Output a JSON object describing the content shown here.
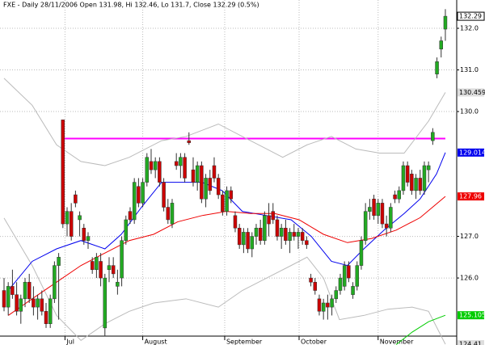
{
  "chart_data": {
    "type": "candlestick",
    "title": "FXE - Daily 28/11/2006 Open 131.98, Hi 132.46, Lo 131.7, Close 132.29 (0.5%)",
    "up_color": "#22aa22",
    "down_color": "#cc0000",
    "open": [
      125.7,
      125.3,
      125.8,
      125.6,
      125.2,
      125.5,
      125.9,
      125.5,
      125.3,
      125.5,
      125.2,
      124.9,
      125.5,
      126.3,
      129.8,
      127.3,
      127.6,
      128.0,
      127.4,
      127.2,
      126.9,
      126.4,
      126.2,
      126.4,
      124.8,
      126.2,
      126.3,
      125.8,
      126.0,
      126.9,
      127.6,
      127.4,
      128.2,
      127.8,
      128.3,
      128.8,
      128.6,
      128.8,
      128.3,
      127.7,
      127.3,
      128.8,
      128.7,
      128.9,
      129.3,
      128.6,
      128.3,
      128.7,
      127.9,
      128.4,
      128.7,
      128.4,
      128.0,
      127.6,
      128.1,
      127.5,
      127.2,
      126.8,
      127.1,
      126.7,
      127.0,
      127.2,
      126.9,
      127.5,
      127.6,
      127.4,
      127.0,
      127.2,
      126.9,
      127.1,
      127.0,
      127.1,
      126.9,
      126.0,
      125.9,
      125.5,
      125.2,
      125.4,
      125.3,
      125.5,
      125.7,
      125.8,
      126.3,
      125.6,
      125.8,
      126.3,
      126.9,
      127.6,
      127.9,
      127.5,
      127.8,
      127.3,
      127.2,
      128.0,
      127.9,
      128.1,
      128.7,
      128.5,
      128.1,
      128.4,
      128.1,
      128.6,
      129.3,
      130.9,
      131.5,
      131.98
    ],
    "high": [
      126.0,
      125.9,
      126.2,
      125.9,
      125.6,
      126.0,
      126.1,
      125.8,
      125.6,
      125.7,
      125.4,
      125.6,
      126.4,
      126.6,
      129.8,
      127.7,
      127.8,
      128.1,
      127.6,
      127.3,
      127.1,
      126.5,
      126.6,
      126.6,
      126.1,
      126.5,
      126.5,
      126.2,
      127.0,
      127.5,
      127.7,
      128.4,
      128.4,
      128.4,
      129.0,
      129.1,
      128.9,
      128.9,
      128.4,
      127.9,
      127.9,
      129.0,
      129.0,
      129.0,
      129.5,
      128.9,
      128.8,
      128.8,
      128.5,
      128.6,
      128.9,
      128.5,
      128.1,
      128.2,
      128.2,
      127.6,
      127.3,
      127.2,
      127.2,
      127.1,
      127.3,
      127.4,
      127.6,
      127.8,
      127.8,
      127.5,
      127.3,
      127.4,
      127.2,
      127.3,
      127.2,
      127.2,
      127.0,
      126.1,
      126.0,
      125.6,
      125.5,
      125.6,
      125.6,
      125.8,
      126.1,
      126.4,
      126.4,
      125.9,
      126.4,
      127.0,
      127.8,
      127.9,
      128.0,
      127.9,
      127.9,
      127.5,
      127.8,
      128.1,
      128.2,
      128.8,
      128.8,
      128.6,
      128.5,
      128.6,
      128.8,
      128.8,
      129.6,
      131.3,
      131.8,
      132.46
    ],
    "low": [
      125.2,
      125.1,
      125.5,
      125.1,
      124.9,
      125.3,
      125.4,
      125.1,
      125.0,
      125.1,
      124.8,
      124.8,
      125.4,
      125.0,
      127.2,
      127.0,
      126.9,
      127.7,
      127.0,
      126.8,
      126.7,
      126.1,
      126.0,
      125.8,
      124.6,
      125.9,
      126.0,
      125.6,
      125.8,
      126.8,
      127.3,
      127.3,
      127.7,
      127.7,
      128.2,
      128.5,
      128.4,
      128.2,
      127.6,
      127.3,
      127.2,
      128.6,
      128.4,
      128.3,
      129.2,
      128.2,
      128.1,
      127.8,
      127.7,
      128.0,
      128.3,
      127.9,
      127.5,
      127.5,
      127.8,
      127.1,
      126.7,
      126.6,
      126.6,
      126.5,
      126.8,
      126.8,
      126.8,
      127.0,
      127.3,
      126.9,
      126.7,
      126.8,
      126.6,
      126.9,
      126.7,
      126.8,
      126.7,
      125.8,
      125.6,
      125.1,
      125.0,
      125.0,
      125.1,
      125.4,
      125.6,
      125.7,
      125.9,
      125.5,
      125.7,
      126.2,
      126.8,
      127.4,
      127.4,
      127.3,
      127.2,
      127.0,
      127.1,
      127.8,
      127.8,
      128.0,
      128.2,
      128.0,
      127.9,
      128.0,
      128.0,
      128.3,
      129.2,
      130.8,
      131.3,
      131.7
    ],
    "close": [
      125.3,
      125.8,
      125.6,
      125.2,
      125.5,
      125.9,
      125.5,
      125.3,
      125.5,
      125.2,
      124.9,
      125.5,
      126.3,
      126.5,
      127.3,
      127.6,
      127.0,
      127.8,
      127.5,
      126.9,
      127.0,
      126.2,
      126.5,
      126.0,
      126.0,
      126.3,
      126.1,
      125.9,
      126.9,
      127.4,
      127.4,
      128.3,
      127.8,
      128.3,
      128.9,
      128.6,
      128.8,
      128.3,
      127.7,
      127.4,
      127.8,
      128.7,
      128.9,
      128.4,
      129.25,
      128.3,
      128.7,
      127.9,
      128.4,
      128.1,
      128.4,
      128.0,
      127.6,
      128.1,
      127.9,
      127.2,
      126.8,
      127.1,
      126.7,
      127.0,
      127.2,
      126.9,
      127.5,
      127.3,
      127.4,
      127.0,
      127.2,
      126.9,
      127.1,
      127.0,
      127.1,
      126.9,
      126.8,
      125.9,
      125.7,
      125.2,
      125.4,
      125.3,
      125.5,
      125.7,
      126.0,
      126.3,
      126.0,
      125.8,
      126.3,
      126.9,
      127.6,
      127.7,
      127.5,
      127.8,
      127.3,
      127.2,
      127.7,
      127.9,
      128.1,
      128.7,
      128.3,
      128.1,
      128.4,
      128.1,
      128.7,
      128.7,
      129.5,
      131.2,
      131.7,
      132.29
    ],
    "lines": [
      {
        "color": "#ff00ff",
        "x": [
          14,
          105
        ],
        "values": [
          129.35,
          129.35
        ]
      },
      {
        "color": "#bbbbbb",
        "tag_fill": "#dddddd",
        "tag_text": "#000000",
        "x": [
          0,
          6.7,
          12.5,
          18.3,
          24,
          29.8,
          37.5,
          43.3,
          51,
          56.7,
          62.5,
          66.3,
          72.1,
          77.9,
          83.7,
          89.4,
          95.2,
          101,
          105
        ],
        "values": [
          130.8,
          130.15,
          129.2,
          128.8,
          128.7,
          128.9,
          129.3,
          129.4,
          129.7,
          129.4,
          129.1,
          128.9,
          129.2,
          129.4,
          129.1,
          129.0,
          129.0,
          129.77,
          130.459
        ]
      },
      {
        "color": "#bbbbbb",
        "tag_fill": "#dddddd",
        "tag_text": "#000000",
        "x": [
          0,
          6.7,
          12.5,
          18.3,
          24,
          29.8,
          35.6,
          43.3,
          51,
          56.7,
          62.5,
          68.3,
          72.1,
          76,
          79.8,
          85.6,
          91.3,
          97.1,
          101,
          105
        ],
        "values": [
          127.44,
          126.3,
          125.1,
          124.5,
          124.9,
          125.2,
          125.4,
          125.5,
          125.3,
          125.7,
          126.0,
          126.3,
          126.5,
          126.0,
          125.0,
          125.1,
          125.25,
          125.3,
          125.2,
          124.41
        ]
      },
      {
        "color": "#0000ee",
        "tag_fill": "#0000ee",
        "tag_text": "#ffffff",
        "x": [
          1,
          6.7,
          12.5,
          18.3,
          24,
          27.9,
          32.7,
          37.5,
          42.3,
          47.1,
          51.9,
          56.7,
          62.5,
          68.3,
          73.1,
          77.9,
          81.7,
          85.6,
          90.4,
          95.2,
          99,
          102.9,
          105
        ],
        "values": [
          125.7,
          126.4,
          126.7,
          126.9,
          126.7,
          127.05,
          127.7,
          128.3,
          128.3,
          128.3,
          128.1,
          127.6,
          127.5,
          127.4,
          127.0,
          126.4,
          126.3,
          126.7,
          127.15,
          127.55,
          127.9,
          128.5,
          129.014
        ]
      },
      {
        "color": "#ee0000",
        "tag_fill": "#ee0000",
        "tag_text": "#ffffff",
        "x": [
          1,
          6.7,
          12.5,
          18.3,
          24,
          29.8,
          35.6,
          41.3,
          47.1,
          52.9,
          58.7,
          64.4,
          70.2,
          76,
          81.7,
          87.5,
          93.3,
          99,
          105
        ],
        "values": [
          125.1,
          125.5,
          125.9,
          126.3,
          126.6,
          126.9,
          127.05,
          127.35,
          127.5,
          127.6,
          127.55,
          127.55,
          127.4,
          127.05,
          126.85,
          126.95,
          127.15,
          127.45,
          127.96
        ]
      },
      {
        "color": "#00cc00",
        "tag_fill": "#00cc00",
        "tag_text": "#ffffff",
        "x": [
          93.3,
          97.1,
          101,
          105
        ],
        "values": [
          124.4,
          124.7,
          124.95,
          125.105
        ]
      }
    ],
    "xlim": [
      -0.96,
      107.7
    ],
    "ylim": [
      124.39,
      132.68
    ],
    "xticks": [
      {
        "value": 14.5,
        "label": "Jul"
      },
      {
        "value": 33,
        "label": "August"
      },
      {
        "value": 52.5,
        "label": "September"
      },
      {
        "value": 70.2,
        "label": "October"
      },
      {
        "value": 89,
        "label": "November"
      }
    ],
    "yticks": [
      {
        "value": 132,
        "label": "132.0"
      },
      {
        "value": 131,
        "label": "131.0"
      },
      {
        "value": 130,
        "label": "130.0"
      },
      {
        "value": 127,
        "label": "127.0"
      },
      {
        "value": 126,
        "label": "126.0"
      }
    ],
    "grid": true
  }
}
